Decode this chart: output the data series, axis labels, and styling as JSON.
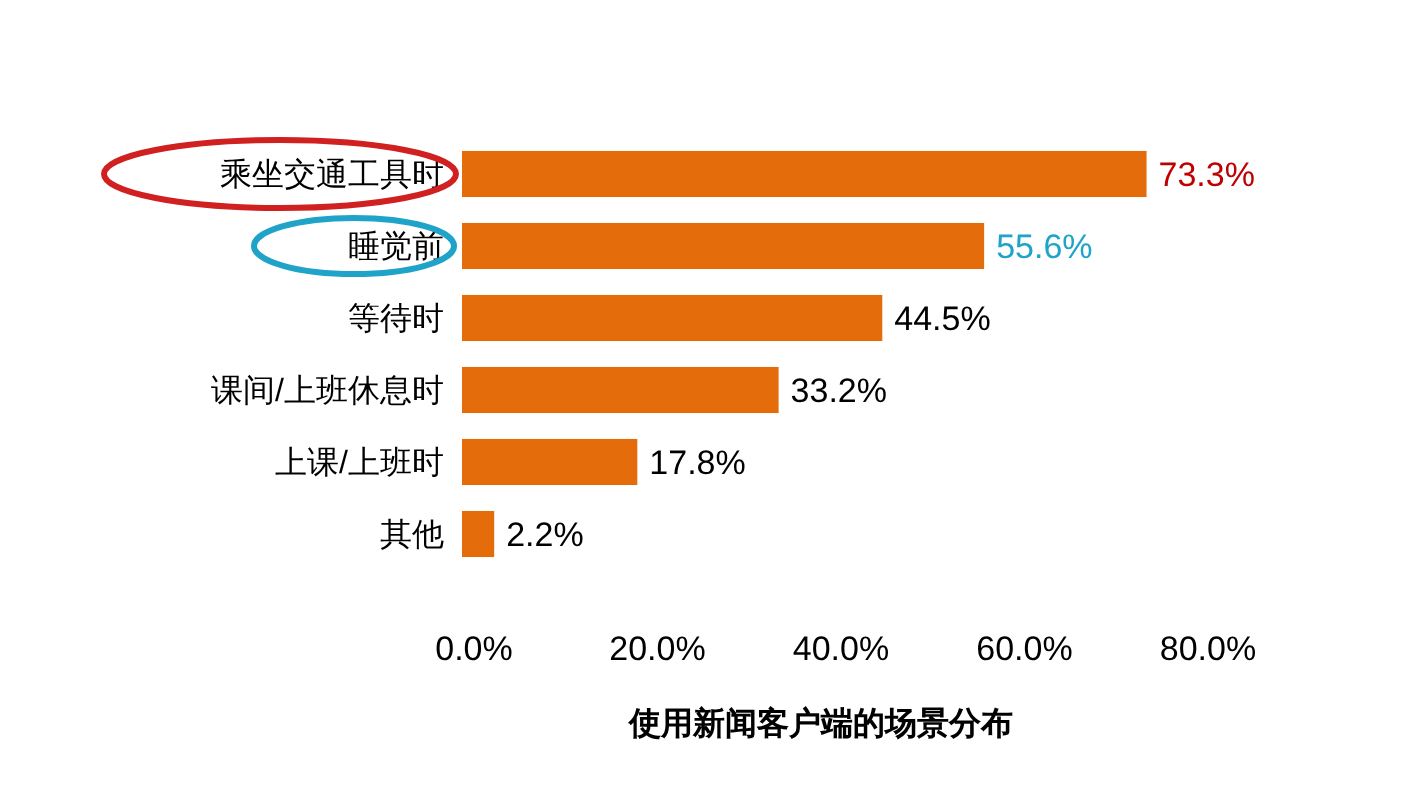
{
  "chart_data": {
    "type": "bar",
    "orientation": "horizontal",
    "xlabel": "使用新闻客户端的场景分布",
    "categories": [
      "乘坐交通工具时",
      "睡觉前",
      "等待时",
      "课间/上班休息时",
      "上课/上班时",
      "其他"
    ],
    "values": [
      73.3,
      55.6,
      44.5,
      33.2,
      17.8,
      2.2
    ],
    "color": "#e46c0a",
    "value_labels": [
      "73.3%",
      "55.6%",
      "44.5%",
      "33.2%",
      "17.8%",
      "2.2%"
    ],
    "xlim": [
      0,
      80
    ],
    "xticks": [
      {
        "value": 0,
        "label": "0.0%"
      },
      {
        "value": 20,
        "label": "20.0%"
      },
      {
        "value": 40,
        "label": "40.0%"
      },
      {
        "value": 60,
        "label": "60.0%"
      },
      {
        "value": 80,
        "label": "80.0%"
      }
    ],
    "grid": false
  }
}
